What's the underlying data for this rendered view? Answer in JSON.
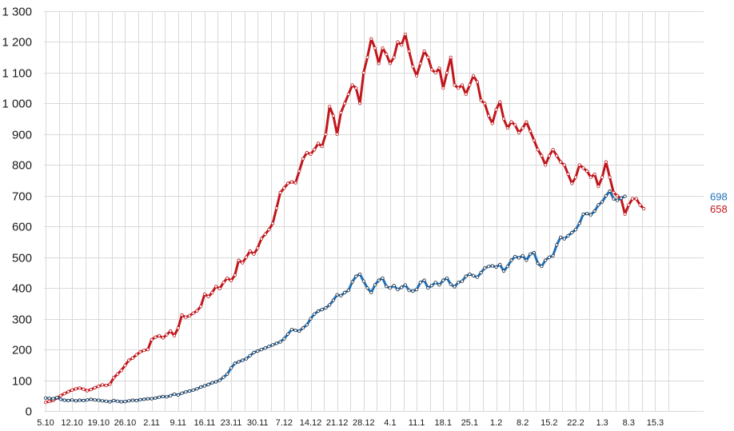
{
  "chart_data": {
    "type": "line",
    "title": "",
    "xlabel": "",
    "ylabel": "",
    "ylim": [
      0,
      1300
    ],
    "grid": true,
    "legend": "none",
    "y_ticks": [
      {
        "value": 0,
        "label": "0"
      },
      {
        "value": 100,
        "label": "100"
      },
      {
        "value": 200,
        "label": "200"
      },
      {
        "value": 300,
        "label": "300"
      },
      {
        "value": 400,
        "label": "400"
      },
      {
        "value": 500,
        "label": "500"
      },
      {
        "value": 600,
        "label": "600"
      },
      {
        "value": 700,
        "label": "700"
      },
      {
        "value": 800,
        "label": "800"
      },
      {
        "value": 900,
        "label": "900"
      },
      {
        "value": 1000,
        "label": "1 000"
      },
      {
        "value": 1100,
        "label": "1 100"
      },
      {
        "value": 1200,
        "label": "1 200"
      },
      {
        "value": 1300,
        "label": "1 300"
      }
    ],
    "x_ticks": [
      "5.10",
      "12.10",
      "19.10",
      "26.10",
      "2.11",
      "9.11",
      "16.11",
      "23.11",
      "30.11",
      "7.12",
      "14.12",
      "21.12",
      "28.12",
      "4.1",
      "11.1",
      "18.1",
      "25.1",
      "1.2",
      "8.2",
      "15.2",
      "22.2",
      "1.3",
      "8.3",
      "15.3"
    ],
    "days_per_tick": 7,
    "series": [
      {
        "color": "#c0161c",
        "end_label": "658",
        "values": [
          28,
          31,
          34,
          42,
          50,
          57,
          63,
          68,
          72,
          75,
          71,
          66,
          70,
          76,
          80,
          85,
          83,
          87,
          108,
          120,
          132,
          148,
          165,
          172,
          183,
          192,
          197,
          200,
          232,
          240,
          245,
          238,
          248,
          260,
          245,
          270,
          312,
          305,
          310,
          318,
          326,
          340,
          380,
          372,
          385,
          405,
          398,
          418,
          432,
          424,
          442,
          490,
          482,
          500,
          520,
          510,
          530,
          560,
          575,
          590,
          610,
          660,
          710,
          725,
          740,
          745,
          742,
          780,
          820,
          840,
          835,
          850,
          870,
          860,
          900,
          990,
          960,
          900,
          970,
          1000,
          1030,
          1060,
          1050,
          1000,
          1100,
          1150,
          1210,
          1180,
          1130,
          1180,
          1160,
          1130,
          1150,
          1200,
          1190,
          1225,
          1170,
          1120,
          1090,
          1130,
          1170,
          1150,
          1110,
          1100,
          1115,
          1050,
          1100,
          1150,
          1060,
          1050,
          1060,
          1030,
          1060,
          1090,
          1070,
          1010,
          1000,
          960,
          935,
          980,
          1005,
          950,
          920,
          940,
          930,
          905,
          920,
          940,
          910,
          880,
          850,
          830,
          800,
          830,
          850,
          830,
          810,
          800,
          770,
          740,
          760,
          800,
          790,
          780,
          760,
          770,
          730,
          760,
          810,
          760,
          710,
          700,
          690,
          640,
          670,
          690,
          690,
          670,
          658
        ]
      },
      {
        "color": "#1f6fb8",
        "end_label": "698",
        "values": [
          42,
          41,
          40,
          44,
          38,
          35,
          34,
          36,
          33,
          35,
          34,
          36,
          38,
          36,
          35,
          33,
          32,
          30,
          34,
          32,
          30,
          31,
          33,
          35,
          34,
          37,
          38,
          40,
          40,
          42,
          45,
          47,
          46,
          50,
          55,
          52,
          58,
          62,
          65,
          68,
          72,
          78,
          82,
          86,
          92,
          95,
          100,
          110,
          120,
          140,
          155,
          160,
          165,
          170,
          180,
          190,
          195,
          200,
          205,
          210,
          215,
          220,
          225,
          235,
          250,
          265,
          262,
          260,
          270,
          280,
          300,
          315,
          325,
          330,
          335,
          345,
          360,
          378,
          375,
          385,
          392,
          420,
          438,
          445,
          422,
          400,
          385,
          410,
          425,
          432,
          405,
          400,
          408,
          395,
          402,
          410,
          392,
          390,
          395,
          418,
          425,
          400,
          408,
          418,
          410,
          425,
          432,
          412,
          404,
          418,
          422,
          438,
          445,
          440,
          435,
          450,
          465,
          470,
          472,
          468,
          476,
          455,
          470,
          490,
          502,
          498,
          505,
          490,
          510,
          515,
          480,
          470,
          490,
          500,
          505,
          540,
          565,
          560,
          570,
          580,
          590,
          610,
          640,
          642,
          638,
          650,
          670,
          680,
          700,
          715,
          690,
          685,
          692,
          698
        ]
      }
    ]
  }
}
